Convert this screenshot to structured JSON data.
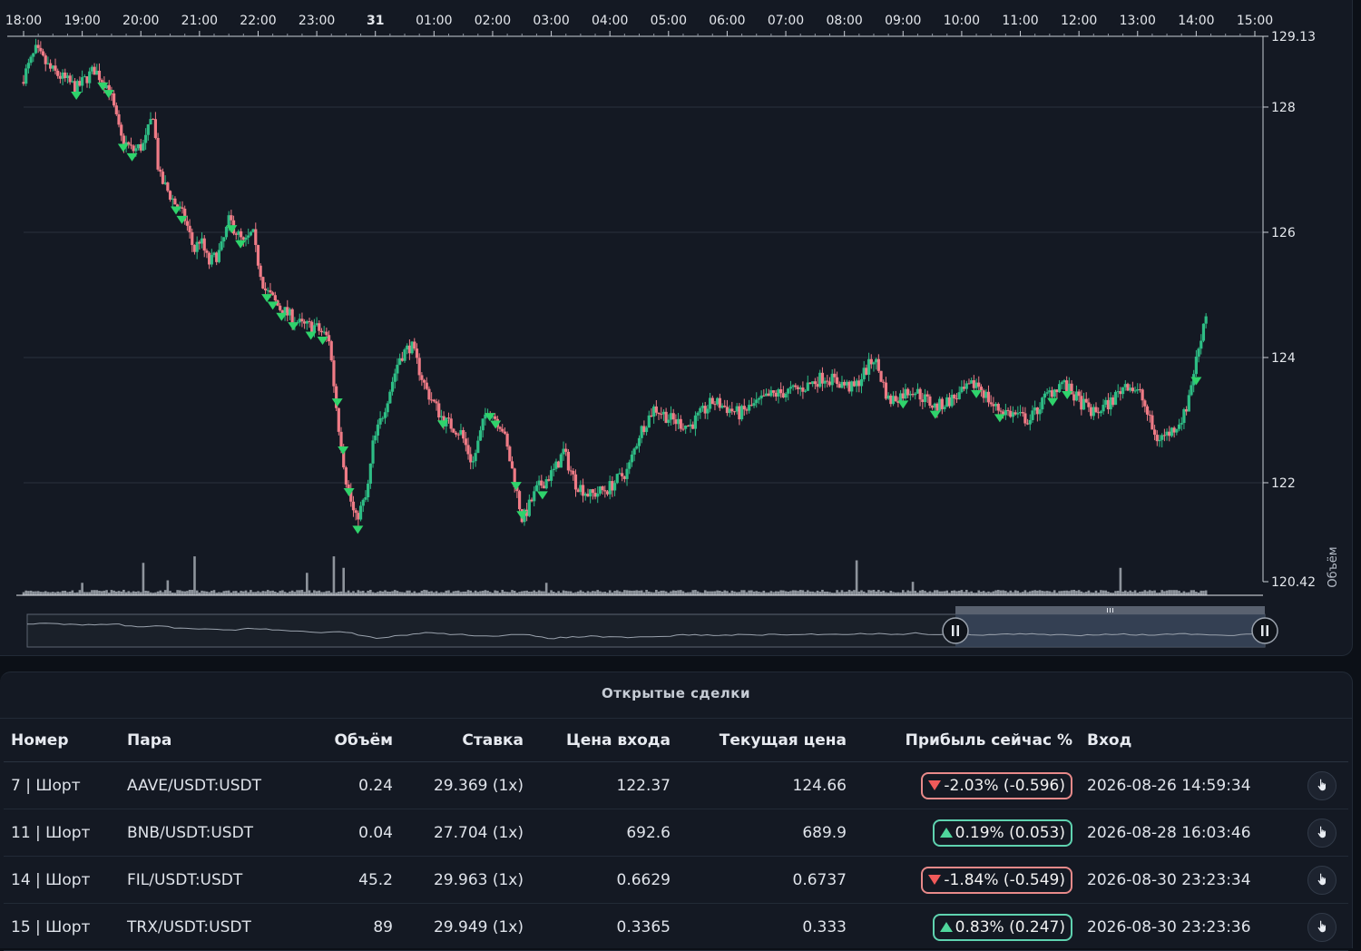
{
  "chart": {
    "time_labels": [
      {
        "t": 0,
        "label": "18:00",
        "bold": false
      },
      {
        "t": 1,
        "label": "19:00",
        "bold": false
      },
      {
        "t": 2,
        "label": "20:00",
        "bold": false
      },
      {
        "t": 3,
        "label": "21:00",
        "bold": false
      },
      {
        "t": 4,
        "label": "22:00",
        "bold": false
      },
      {
        "t": 5,
        "label": "23:00",
        "bold": false
      },
      {
        "t": 6,
        "label": "31",
        "bold": true
      },
      {
        "t": 7,
        "label": "01:00",
        "bold": false
      },
      {
        "t": 8,
        "label": "02:00",
        "bold": false
      },
      {
        "t": 9,
        "label": "03:00",
        "bold": false
      },
      {
        "t": 10,
        "label": "04:00",
        "bold": false
      },
      {
        "t": 11,
        "label": "05:00",
        "bold": false
      },
      {
        "t": 12,
        "label": "06:00",
        "bold": false
      },
      {
        "t": 13,
        "label": "07:00",
        "bold": false
      },
      {
        "t": 14,
        "label": "08:00",
        "bold": false
      },
      {
        "t": 15,
        "label": "09:00",
        "bold": false
      },
      {
        "t": 16,
        "label": "10:00",
        "bold": false
      },
      {
        "t": 17,
        "label": "11:00",
        "bold": false
      },
      {
        "t": 18,
        "label": "12:00",
        "bold": false
      },
      {
        "t": 19,
        "label": "13:00",
        "bold": false
      },
      {
        "t": 20,
        "label": "14:00",
        "bold": false
      },
      {
        "t": 21,
        "label": "15:00",
        "bold": false
      }
    ],
    "price_labels": [
      {
        "v": 129.13,
        "label": "129.13"
      },
      {
        "v": 128,
        "label": "128"
      },
      {
        "v": 126,
        "label": "126"
      },
      {
        "v": 124,
        "label": "124"
      },
      {
        "v": 122,
        "label": "122"
      },
      {
        "v": 120.42,
        "label": "120.42"
      }
    ],
    "ylim": [
      120.42,
      129.13
    ],
    "volume_axis_label": "Объём",
    "colors": {
      "up": "#26a69a",
      "up_bright": "#2ebd85",
      "down": "#ef7b86",
      "marker": "#2fd36b",
      "grid": "#2a313c"
    },
    "price_path": [
      [
        0,
        128.4
      ],
      [
        0.25,
        128.9
      ],
      [
        0.5,
        128.6
      ],
      [
        0.95,
        128.3
      ],
      [
        1.25,
        128.6
      ],
      [
        1.5,
        128.3
      ],
      [
        1.7,
        127.5
      ],
      [
        1.9,
        127.3
      ],
      [
        2.1,
        127.4
      ],
      [
        2.25,
        127.9
      ],
      [
        2.35,
        126.9
      ],
      [
        2.6,
        126.5
      ],
      [
        2.8,
        126.2
      ],
      [
        2.95,
        125.7
      ],
      [
        3.05,
        125.9
      ],
      [
        3.2,
        125.5
      ],
      [
        3.4,
        125.7
      ],
      [
        3.55,
        126.2
      ],
      [
        3.8,
        125.8
      ],
      [
        3.95,
        126.0
      ],
      [
        4.0,
        125.7
      ],
      [
        4.15,
        125.1
      ],
      [
        4.4,
        124.8
      ],
      [
        4.8,
        124.5
      ],
      [
        5.0,
        124.5
      ],
      [
        5.25,
        124.3
      ],
      [
        5.4,
        123.0
      ],
      [
        5.55,
        122.0
      ],
      [
        5.7,
        121.4
      ],
      [
        5.9,
        121.8
      ],
      [
        6.0,
        122.6
      ],
      [
        6.2,
        123.2
      ],
      [
        6.45,
        124.0
      ],
      [
        6.65,
        124.2
      ],
      [
        6.9,
        123.5
      ],
      [
        7.2,
        123.0
      ],
      [
        7.5,
        122.8
      ],
      [
        7.7,
        122.3
      ],
      [
        7.95,
        123.2
      ],
      [
        8.2,
        122.9
      ],
      [
        8.4,
        122.1
      ],
      [
        8.55,
        121.4
      ],
      [
        8.8,
        121.9
      ],
      [
        9.1,
        122.2
      ],
      [
        9.25,
        122.5
      ],
      [
        9.45,
        122.0
      ],
      [
        9.7,
        121.8
      ],
      [
        10.0,
        121.9
      ],
      [
        10.35,
        122.2
      ],
      [
        10.55,
        122.8
      ],
      [
        10.8,
        123.2
      ],
      [
        11.1,
        123.0
      ],
      [
        11.4,
        122.9
      ],
      [
        11.8,
        123.3
      ],
      [
        12.25,
        123.1
      ],
      [
        12.8,
        123.4
      ],
      [
        13.3,
        123.5
      ],
      [
        13.7,
        123.7
      ],
      [
        14.2,
        123.5
      ],
      [
        14.55,
        124.0
      ],
      [
        14.8,
        123.3
      ],
      [
        15.2,
        123.5
      ],
      [
        15.6,
        123.2
      ],
      [
        16.0,
        123.4
      ],
      [
        16.3,
        123.6
      ],
      [
        16.6,
        123.2
      ],
      [
        16.9,
        123.1
      ],
      [
        17.2,
        123.0
      ],
      [
        17.5,
        123.4
      ],
      [
        17.75,
        123.6
      ],
      [
        18.05,
        123.3
      ],
      [
        18.3,
        123.1
      ],
      [
        18.6,
        123.3
      ],
      [
        18.85,
        123.6
      ],
      [
        19.1,
        123.4
      ],
      [
        19.35,
        122.7
      ],
      [
        19.6,
        122.8
      ],
      [
        19.85,
        123.1
      ],
      [
        20.05,
        124.0
      ],
      [
        20.2,
        124.7
      ]
    ],
    "volume_spikes": [
      {
        "t": 1.0,
        "v": 0.25
      },
      {
        "t": 2.05,
        "v": 0.65
      },
      {
        "t": 2.45,
        "v": 0.3
      },
      {
        "t": 2.9,
        "v": 0.78
      },
      {
        "t": 4.85,
        "v": 0.45
      },
      {
        "t": 5.3,
        "v": 0.78
      },
      {
        "t": 5.45,
        "v": 0.55
      },
      {
        "t": 8.9,
        "v": 0.25
      },
      {
        "t": 14.2,
        "v": 0.7
      },
      {
        "t": 15.15,
        "v": 0.27
      },
      {
        "t": 18.7,
        "v": 0.55
      },
      {
        "t": 20.2,
        "v": 0.32
      }
    ],
    "short_markers": [
      0.9,
      1.35,
      1.45,
      1.7,
      1.85,
      2.6,
      2.7,
      3.55,
      3.7,
      4.15,
      4.25,
      4.4,
      4.6,
      4.9,
      5.1,
      5.35,
      5.45,
      5.55,
      5.7,
      7.15,
      7.95,
      8.05,
      8.4,
      8.5,
      8.85,
      15.0,
      15.55,
      16.25,
      16.65,
      17.55,
      17.8,
      20.0
    ],
    "navigator": {
      "window_start_frac": 0.75,
      "window_end_frac": 1.0
    }
  },
  "trades": {
    "title": "Открытые сделки",
    "columns": [
      "Номер",
      "Пара",
      "Объём",
      "Ставка",
      "Цена входа",
      "Текущая цена",
      "Прибыль сейчас %",
      "Вход"
    ],
    "rows": [
      {
        "number": "7 | Шорт",
        "pair": "AAVE/USDT:USDT",
        "amount": "0.24",
        "stake": "29.369 (1x)",
        "entry_price": "122.37",
        "current_price": "124.66",
        "profit": "-2.03% (-0.596)",
        "profit_dir": "neg",
        "entry": "2026-08-26 14:59:34"
      },
      {
        "number": "11 | Шорт",
        "pair": "BNB/USDT:USDT",
        "amount": "0.04",
        "stake": "27.704 (1x)",
        "entry_price": "692.6",
        "current_price": "689.9",
        "profit": "0.19% (0.053)",
        "profit_dir": "pos",
        "entry": "2026-08-28 16:03:46"
      },
      {
        "number": "14 | Шорт",
        "pair": "FIL/USDT:USDT",
        "amount": "45.2",
        "stake": "29.963 (1x)",
        "entry_price": "0.6629",
        "current_price": "0.6737",
        "profit": "-1.84% (-0.549)",
        "profit_dir": "neg",
        "entry": "2026-08-30 23:23:34"
      },
      {
        "number": "15 | Шорт",
        "pair": "TRX/USDT:USDT",
        "amount": "89",
        "stake": "29.949 (1x)",
        "entry_price": "0.3365",
        "current_price": "0.333",
        "profit": "0.83% (0.247)",
        "profit_dir": "pos",
        "entry": "2026-08-30 23:23:36"
      }
    ]
  }
}
